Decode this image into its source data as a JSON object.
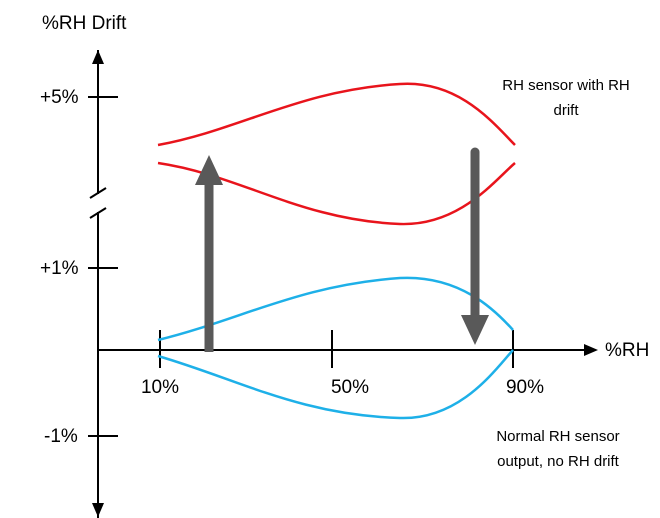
{
  "y_axis": {
    "title": "%RH Drift",
    "ticks": [
      "+5%",
      "+1%",
      "-1%"
    ]
  },
  "x_axis": {
    "title": "%RH",
    "ticks": [
      "10%",
      "50%",
      "90%"
    ]
  },
  "annotations": {
    "drift": [
      "RH sensor with RH",
      "drift"
    ],
    "normal": [
      "Normal RH sensor",
      "output, no RH drift"
    ]
  }
}
